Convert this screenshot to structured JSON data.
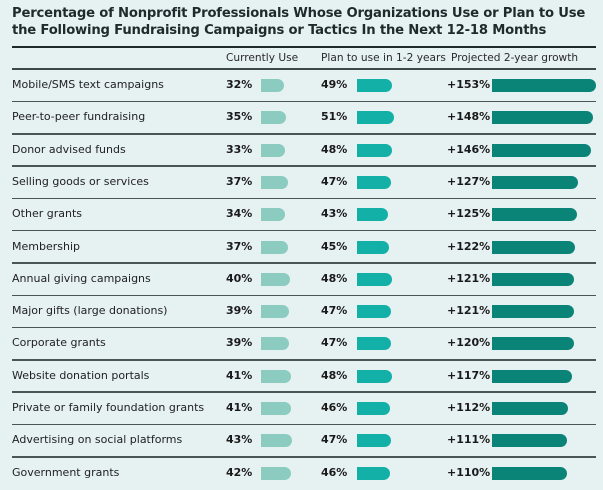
{
  "title_line1": "Percentage of Nonprofit Professionals Whose Organizations Use or Plan to Use",
  "title_line2": "the Following Fundraising Campaigns or Tactics In the Next 12-18 Months",
  "chart_data": {
    "type": "table",
    "title": "Percentage of Nonprofit Professionals Whose Organizations Use or Plan to Use the Following Fundraising Campaigns or Tactics In the Next 12-18 Months",
    "columns": [
      "",
      "Currently Use",
      "Plan to use in 1-2 years",
      "Projected 2-year growth"
    ],
    "colors": {
      "current": "#8ccbbf",
      "plan": "#12b0a6",
      "growth": "#0b8478"
    },
    "rows": [
      {
        "label": "Mobile/SMS text campaigns",
        "current": 32,
        "plan": 49,
        "growth": 153
      },
      {
        "label": "Peer-to-peer fundraising",
        "current": 35,
        "plan": 51,
        "growth": 148
      },
      {
        "label": "Donor advised funds",
        "current": 33,
        "plan": 48,
        "growth": 146
      },
      {
        "label": "Selling goods or services",
        "current": 37,
        "plan": 47,
        "growth": 127
      },
      {
        "label": "Other grants",
        "current": 34,
        "plan": 43,
        "growth": 125
      },
      {
        "label": "Membership",
        "current": 37,
        "plan": 45,
        "growth": 122
      },
      {
        "label": "Annual giving campaigns",
        "current": 40,
        "plan": 48,
        "growth": 121
      },
      {
        "label": "Major gifts (large donations)",
        "current": 39,
        "plan": 47,
        "growth": 121
      },
      {
        "label": "Corporate grants",
        "current": 39,
        "plan": 47,
        "growth": 120
      },
      {
        "label": "Website donation portals",
        "current": 41,
        "plan": 48,
        "growth": 117
      },
      {
        "label": "Private or family foundation grants",
        "current": 41,
        "plan": 46,
        "growth": 112
      },
      {
        "label": "Advertising on social platforms",
        "current": 43,
        "plan": 47,
        "growth": 111
      },
      {
        "label": "Government grants",
        "current": 42,
        "plan": 46,
        "growth": 110
      }
    ]
  }
}
